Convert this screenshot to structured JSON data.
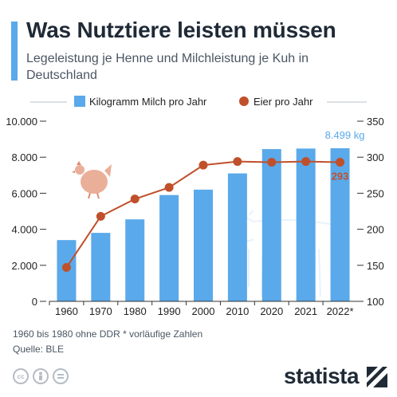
{
  "header": {
    "title": "Was Nutztiere leisten müssen",
    "subtitle": "Legeleistung je Henne und Milchleistung je Kuh in Deutschland"
  },
  "colors": {
    "accent": "#5aa9ea",
    "bar": "#5aa9ea",
    "line": "#c0502b",
    "text": "#1f2a36"
  },
  "chart_data": {
    "type": "bar+line",
    "categories": [
      "1960",
      "1970",
      "1980",
      "1990",
      "2000",
      "2010",
      "2020",
      "2021",
      "2022*"
    ],
    "series": [
      {
        "name": "Kilogramm Milch pro Jahr",
        "type": "bar",
        "axis": "left",
        "values": [
          3400,
          3800,
          4550,
          5900,
          6200,
          7100,
          8450,
          8480,
          8499
        ]
      },
      {
        "name": "Eier pro Jahr",
        "type": "line",
        "axis": "right",
        "values": [
          147,
          218,
          242,
          258,
          289,
          294,
          293,
          294,
          293
        ]
      }
    ],
    "left_axis": {
      "ylim": [
        0,
        10000
      ],
      "ticks": [
        "0",
        "2.000",
        "4.000",
        "6.000",
        "8.000",
        "10.000"
      ]
    },
    "right_axis": {
      "ylim": [
        100,
        350
      ],
      "ticks": [
        "100",
        "150",
        "200",
        "250",
        "300",
        "350"
      ]
    },
    "annotations": {
      "milk_last": "8.499 kg",
      "eggs_last": "293"
    },
    "grid": false,
    "legend_position": "top"
  },
  "footer": {
    "note": "1960 bis 1980 ohne DDR    * vorläufige Zahlen",
    "source": "Quelle: BLE",
    "brand": "statista",
    "license_icons": [
      "cc-icon",
      "by-icon",
      "nd-icon"
    ]
  }
}
